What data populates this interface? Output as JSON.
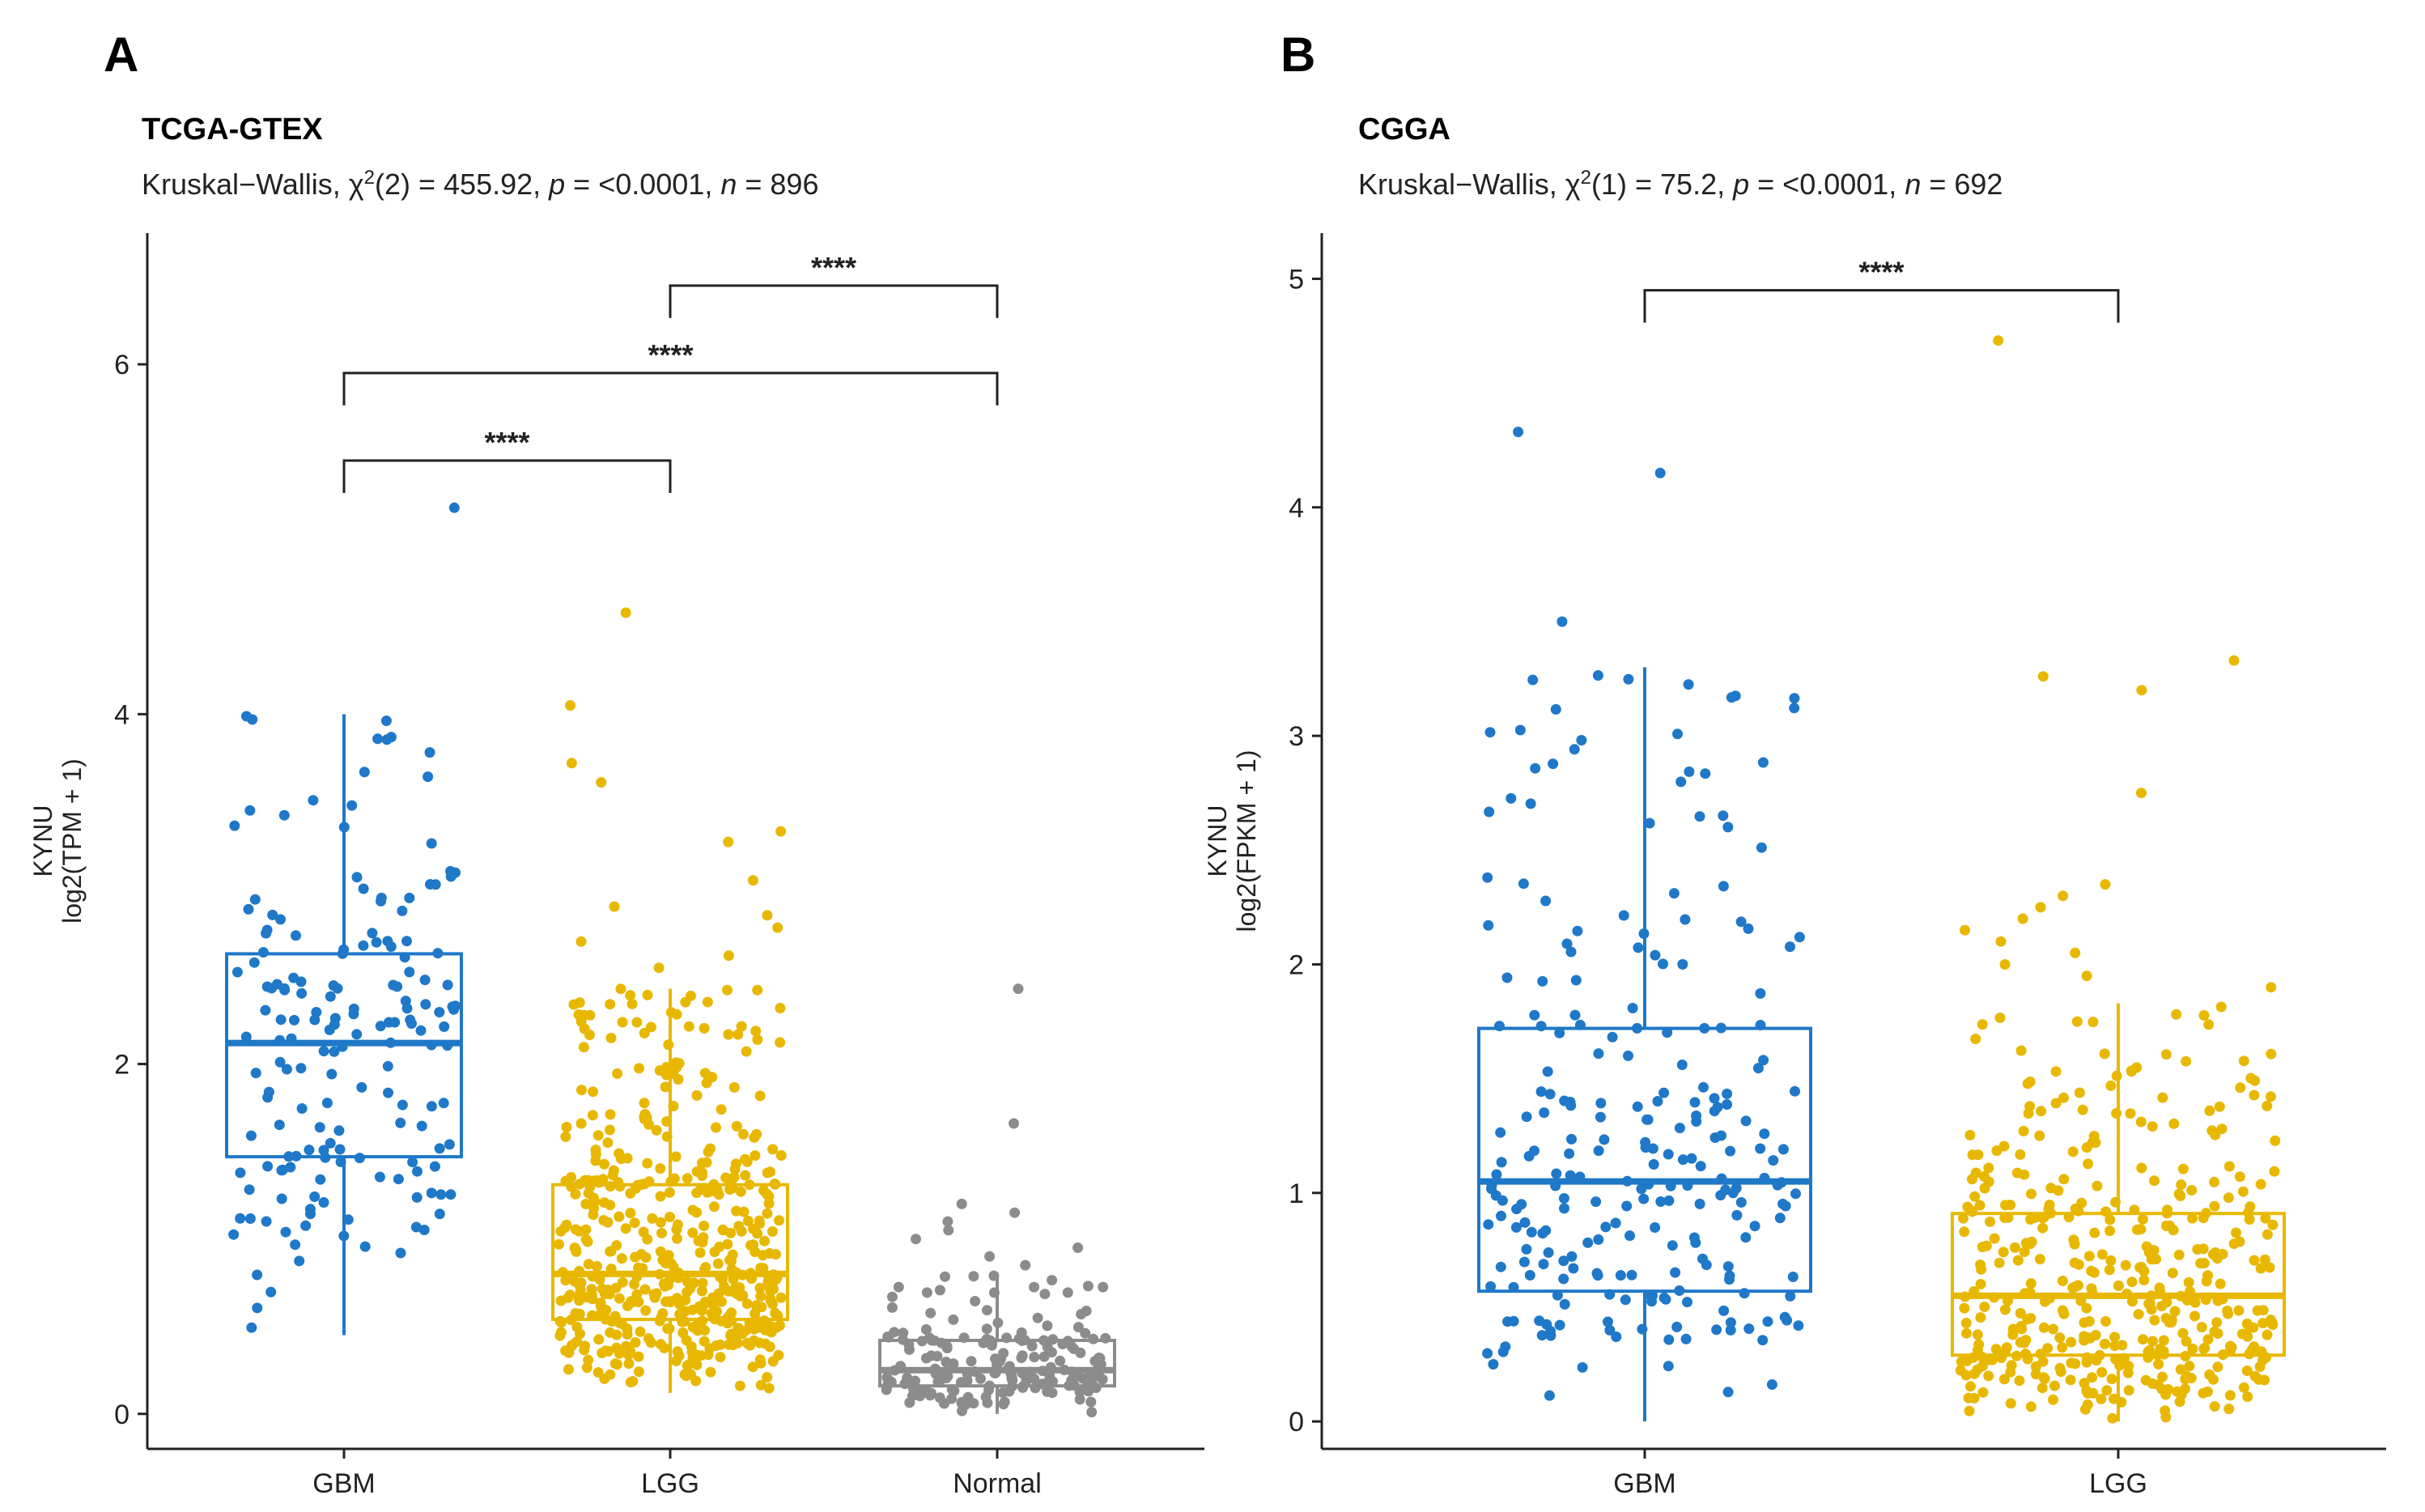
{
  "chart_data": [
    {
      "panel_letter": "A",
      "type": "box",
      "title": "TCGA-GTEX",
      "subtitle": {
        "prefix": "Kruskal−Wallis, ",
        "chi_symbol": "χ",
        "chi_exp": "2",
        "chi_df": "(2)",
        "chi_value": " = 455.92, ",
        "p_symbol": "p",
        "p_value": " = <0.0001, ",
        "n_symbol": "n",
        "n_value": " = 896"
      },
      "ylabel_line1": "KYNU",
      "ylabel_line2": "log2(TPM + 1)",
      "ylim": [
        -0.2,
        6.75
      ],
      "yticks": [
        "0",
        "2",
        "4",
        "6"
      ],
      "categories": [
        "GBM",
        "LGG",
        "Normal"
      ],
      "colors": [
        "#1f78c8",
        "#e8b800",
        "#8c8c8c"
      ],
      "boxes": [
        {
          "name": "GBM",
          "whisker_low": 0.45,
          "q1": 1.47,
          "median": 2.12,
          "q3": 2.63,
          "whisker_high": 4.0,
          "n_points": 170,
          "outliers": [
            5.18
          ]
        },
        {
          "name": "LGG",
          "whisker_low": 0.12,
          "q1": 0.54,
          "median": 0.8,
          "q3": 1.31,
          "whisker_high": 2.43,
          "n_points": 520,
          "outliers": [
            2.55,
            2.62,
            2.7,
            2.78,
            2.85,
            2.9,
            3.05,
            3.27,
            3.33,
            3.61,
            3.72,
            4.05,
            4.58
          ]
        },
        {
          "name": "Normal",
          "whisker_low": 0.0,
          "q1": 0.16,
          "median": 0.25,
          "q3": 0.42,
          "whisker_high": 0.8,
          "n_points": 206,
          "outliers": [
            0.85,
            0.9,
            0.95,
            1.0,
            1.05,
            1.1,
            1.15,
            1.2,
            1.66,
            2.43
          ]
        }
      ],
      "comparisons": [
        {
          "from": 0,
          "to": 1,
          "y": 5.45,
          "label": "****"
        },
        {
          "from": 0,
          "to": 2,
          "y": 5.95,
          "label": "****"
        },
        {
          "from": 1,
          "to": 2,
          "y": 6.45,
          "label": "****"
        }
      ]
    },
    {
      "panel_letter": "B",
      "type": "box",
      "title": "CGGA",
      "subtitle": {
        "prefix": "Kruskal−Wallis, ",
        "chi_symbol": "χ",
        "chi_exp": "2",
        "chi_df": "(1)",
        "chi_value": " = 75.2, ",
        "p_symbol": "p",
        "p_value": " = <0.0001, ",
        "n_symbol": "n",
        "n_value": " = 692"
      },
      "ylabel_line1": "KYNU",
      "ylabel_line2": "log2(FPKM + 1)",
      "ylim": [
        -0.12,
        5.2
      ],
      "yticks": [
        "0",
        "1",
        "2",
        "3",
        "4",
        "5"
      ],
      "categories": [
        "GBM",
        "LGG"
      ],
      "colors": [
        "#1f78c8",
        "#e8b800"
      ],
      "boxes": [
        {
          "name": "GBM",
          "whisker_low": 0.0,
          "q1": 0.57,
          "median": 1.05,
          "q3": 1.72,
          "whisker_high": 3.3,
          "n_points": 249,
          "outliers": [
            3.5,
            4.15,
            4.33
          ]
        },
        {
          "name": "LGG",
          "whisker_low": 0.0,
          "q1": 0.29,
          "median": 0.55,
          "q3": 0.91,
          "whisker_high": 1.83,
          "n_points": 443,
          "outliers": [
            1.9,
            1.95,
            2.0,
            2.05,
            2.1,
            2.15,
            2.2,
            2.25,
            2.3,
            2.35,
            2.75,
            3.2,
            3.26,
            3.33,
            4.73
          ]
        }
      ],
      "comparisons": [
        {
          "from": 0,
          "to": 1,
          "y": 4.95,
          "label": "****"
        }
      ]
    }
  ]
}
